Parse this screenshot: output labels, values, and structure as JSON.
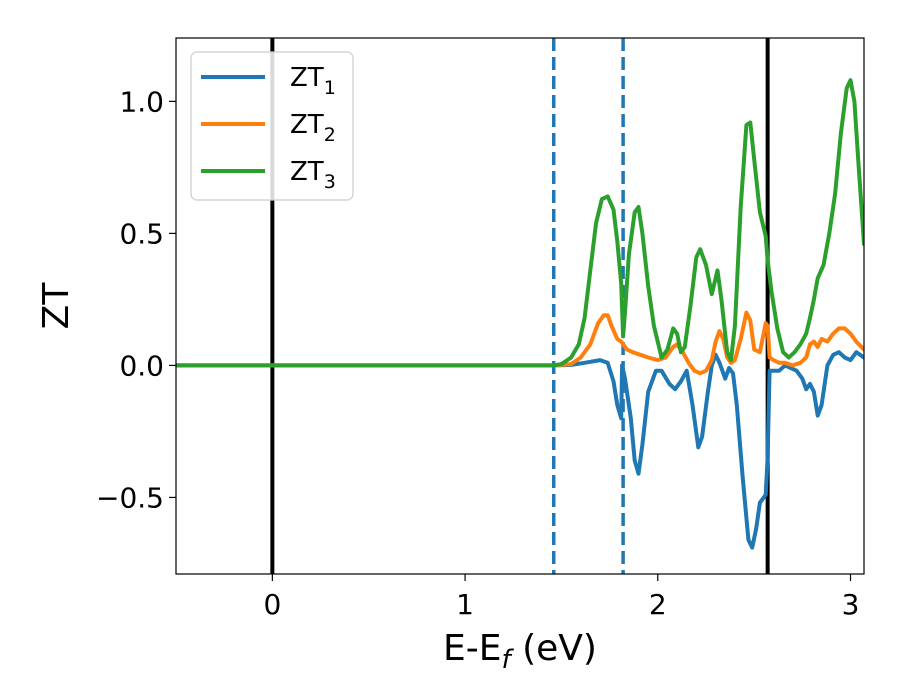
{
  "chart_data": {
    "type": "line",
    "title": "",
    "xlabel": {
      "main": "E-E",
      "sub": "f",
      "unit": " (eV)"
    },
    "ylabel": "ZT",
    "xlim": [
      -0.5,
      3.07
    ],
    "ylim": [
      -0.79,
      1.24
    ],
    "xticks": [
      {
        "value": 0,
        "label": "0"
      },
      {
        "value": 1,
        "label": "1"
      },
      {
        "value": 2,
        "label": "2"
      },
      {
        "value": 3,
        "label": "3"
      }
    ],
    "yticks": [
      {
        "value": -0.5,
        "label": "−0.5"
      },
      {
        "value": 0.0,
        "label": "0.0"
      },
      {
        "value": 0.5,
        "label": "0.5"
      },
      {
        "value": 1.0,
        "label": "1.0"
      }
    ],
    "grid": false,
    "legend_position": "top-left",
    "vlines": [
      {
        "x": 0.0,
        "style": "solid",
        "color": "#000000"
      },
      {
        "x": 2.57,
        "style": "solid",
        "color": "#000000"
      },
      {
        "x": 1.46,
        "style": "dashed",
        "color": "#1f77b4"
      },
      {
        "x": 1.82,
        "style": "dashed",
        "color": "#1f77b4"
      }
    ],
    "series": [
      {
        "name": "ZT",
        "subscript": "1",
        "color": "#1f77b4",
        "points": [
          [
            -0.5,
            0
          ],
          [
            1.46,
            0
          ],
          [
            1.55,
            0.002
          ],
          [
            1.62,
            0.01
          ],
          [
            1.7,
            0.02
          ],
          [
            1.74,
            0.01
          ],
          [
            1.77,
            -0.06
          ],
          [
            1.79,
            -0.15
          ],
          [
            1.81,
            -0.2
          ],
          [
            1.815,
            0.0
          ],
          [
            1.83,
            -0.05
          ],
          [
            1.86,
            -0.2
          ],
          [
            1.88,
            -0.36
          ],
          [
            1.9,
            -0.41
          ],
          [
            1.92,
            -0.3
          ],
          [
            1.95,
            -0.1
          ],
          [
            1.99,
            -0.02
          ],
          [
            2.02,
            -0.02
          ],
          [
            2.06,
            -0.07
          ],
          [
            2.09,
            -0.09
          ],
          [
            2.12,
            -0.06
          ],
          [
            2.15,
            -0.02
          ],
          [
            2.18,
            -0.15
          ],
          [
            2.21,
            -0.31
          ],
          [
            2.23,
            -0.27
          ],
          [
            2.26,
            -0.1
          ],
          [
            2.28,
            0.0
          ],
          [
            2.3,
            0.04
          ],
          [
            2.32,
            0.01
          ],
          [
            2.35,
            -0.05
          ],
          [
            2.37,
            -0.01
          ],
          [
            2.39,
            -0.03
          ],
          [
            2.41,
            -0.15
          ],
          [
            2.44,
            -0.42
          ],
          [
            2.47,
            -0.66
          ],
          [
            2.49,
            -0.69
          ],
          [
            2.51,
            -0.62
          ],
          [
            2.53,
            -0.52
          ],
          [
            2.56,
            -0.49
          ],
          [
            2.57,
            -0.35
          ],
          [
            2.58,
            -0.02
          ],
          [
            2.6,
            -0.02
          ],
          [
            2.63,
            -0.02
          ],
          [
            2.66,
            0.0
          ],
          [
            2.69,
            -0.01
          ],
          [
            2.72,
            -0.02
          ],
          [
            2.75,
            -0.05
          ],
          [
            2.77,
            -0.09
          ],
          [
            2.79,
            -0.07
          ],
          [
            2.81,
            -0.1
          ],
          [
            2.83,
            -0.19
          ],
          [
            2.85,
            -0.15
          ],
          [
            2.88,
            0.0
          ],
          [
            2.91,
            0.04
          ],
          [
            2.94,
            0.05
          ],
          [
            2.97,
            0.03
          ],
          [
            3.0,
            0.02
          ],
          [
            3.03,
            0.05
          ],
          [
            3.07,
            0.03
          ]
        ]
      },
      {
        "name": "ZT",
        "subscript": "2",
        "color": "#ff7f0e",
        "points": [
          [
            -0.5,
            0
          ],
          [
            1.46,
            0
          ],
          [
            1.55,
            0.005
          ],
          [
            1.6,
            0.03
          ],
          [
            1.65,
            0.08
          ],
          [
            1.69,
            0.16
          ],
          [
            1.72,
            0.19
          ],
          [
            1.74,
            0.19
          ],
          [
            1.76,
            0.15
          ],
          [
            1.79,
            0.1
          ],
          [
            1.81,
            0.09
          ],
          [
            1.84,
            0.06
          ],
          [
            1.87,
            0.05
          ],
          [
            1.91,
            0.04
          ],
          [
            1.95,
            0.03
          ],
          [
            2.0,
            0.02
          ],
          [
            2.04,
            0.03
          ],
          [
            2.08,
            0.07
          ],
          [
            2.1,
            0.08
          ],
          [
            2.13,
            0.05
          ],
          [
            2.16,
            0.01
          ],
          [
            2.19,
            -0.02
          ],
          [
            2.22,
            -0.03
          ],
          [
            2.25,
            -0.02
          ],
          [
            2.28,
            0.02
          ],
          [
            2.3,
            0.09
          ],
          [
            2.32,
            0.13
          ],
          [
            2.34,
            0.1
          ],
          [
            2.36,
            0.03
          ],
          [
            2.38,
            0.01
          ],
          [
            2.4,
            0.02
          ],
          [
            2.43,
            0.1
          ],
          [
            2.46,
            0.2
          ],
          [
            2.48,
            0.17
          ],
          [
            2.5,
            0.06
          ],
          [
            2.53,
            0.05
          ],
          [
            2.56,
            0.16
          ],
          [
            2.57,
            0.15
          ],
          [
            2.58,
            0.03
          ],
          [
            2.6,
            0.02
          ],
          [
            2.63,
            0.01
          ],
          [
            2.66,
            0.01
          ],
          [
            2.7,
            0.0
          ],
          [
            2.74,
            0.01
          ],
          [
            2.77,
            0.03
          ],
          [
            2.79,
            0.08
          ],
          [
            2.81,
            0.09
          ],
          [
            2.83,
            0.07
          ],
          [
            2.85,
            0.1
          ],
          [
            2.88,
            0.09
          ],
          [
            2.91,
            0.12
          ],
          [
            2.94,
            0.14
          ],
          [
            2.97,
            0.14
          ],
          [
            3.0,
            0.12
          ],
          [
            3.03,
            0.09
          ],
          [
            3.07,
            0.06
          ]
        ]
      },
      {
        "name": "ZT",
        "subscript": "3",
        "color": "#2ca02c",
        "points": [
          [
            -0.5,
            0
          ],
          [
            1.46,
            0
          ],
          [
            1.5,
            0.005
          ],
          [
            1.55,
            0.03
          ],
          [
            1.59,
            0.08
          ],
          [
            1.62,
            0.18
          ],
          [
            1.65,
            0.36
          ],
          [
            1.68,
            0.54
          ],
          [
            1.71,
            0.63
          ],
          [
            1.74,
            0.64
          ],
          [
            1.77,
            0.59
          ],
          [
            1.79,
            0.47
          ],
          [
            1.81,
            0.31
          ],
          [
            1.82,
            0.11
          ],
          [
            1.83,
            0.2
          ],
          [
            1.85,
            0.42
          ],
          [
            1.88,
            0.58
          ],
          [
            1.9,
            0.6
          ],
          [
            1.92,
            0.5
          ],
          [
            1.95,
            0.3
          ],
          [
            1.98,
            0.15
          ],
          [
            2.02,
            0.03
          ],
          [
            2.05,
            0.06
          ],
          [
            2.08,
            0.14
          ],
          [
            2.1,
            0.12
          ],
          [
            2.12,
            0.05
          ],
          [
            2.14,
            0.07
          ],
          [
            2.17,
            0.23
          ],
          [
            2.2,
            0.41
          ],
          [
            2.22,
            0.44
          ],
          [
            2.25,
            0.38
          ],
          [
            2.28,
            0.27
          ],
          [
            2.31,
            0.36
          ],
          [
            2.33,
            0.25
          ],
          [
            2.36,
            0.05
          ],
          [
            2.38,
            0.02
          ],
          [
            2.4,
            0.15
          ],
          [
            2.43,
            0.6
          ],
          [
            2.46,
            0.91
          ],
          [
            2.48,
            0.92
          ],
          [
            2.5,
            0.78
          ],
          [
            2.53,
            0.58
          ],
          [
            2.56,
            0.49
          ],
          [
            2.57,
            0.4
          ],
          [
            2.59,
            0.28
          ],
          [
            2.62,
            0.14
          ],
          [
            2.65,
            0.05
          ],
          [
            2.68,
            0.03
          ],
          [
            2.71,
            0.05
          ],
          [
            2.74,
            0.08
          ],
          [
            2.77,
            0.12
          ],
          [
            2.79,
            0.18
          ],
          [
            2.81,
            0.25
          ],
          [
            2.83,
            0.33
          ],
          [
            2.86,
            0.38
          ],
          [
            2.89,
            0.5
          ],
          [
            2.92,
            0.65
          ],
          [
            2.95,
            0.88
          ],
          [
            2.98,
            1.05
          ],
          [
            3.0,
            1.08
          ],
          [
            3.02,
            1.0
          ],
          [
            3.04,
            0.78
          ],
          [
            3.07,
            0.46
          ]
        ]
      }
    ]
  }
}
